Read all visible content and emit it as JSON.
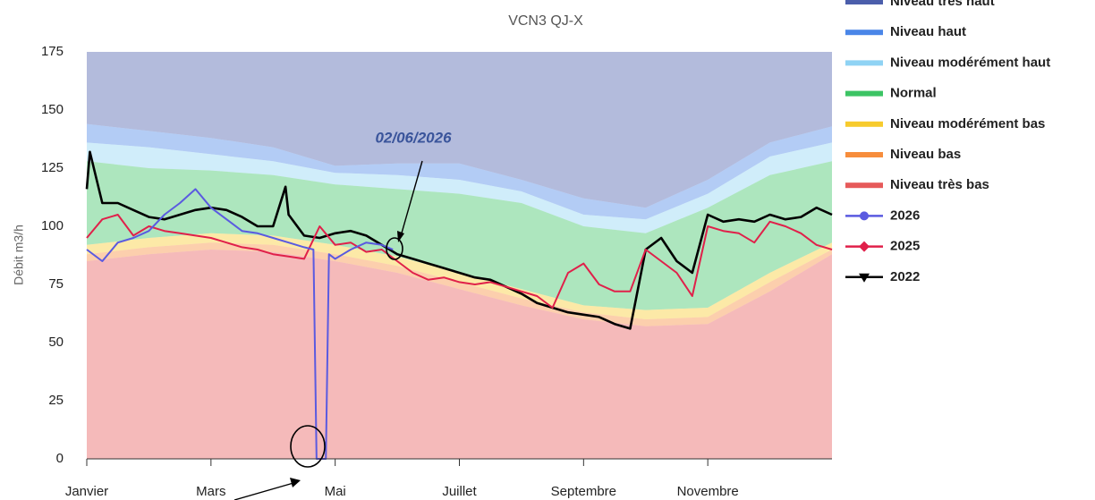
{
  "chart_data": {
    "type": "line",
    "subtitle": "VCN3 QJ-X",
    "y_label": "Débit   m3/h",
    "annotations": [
      "02/06/2026"
    ],
    "xlim": [
      0,
      12
    ],
    "ylim": [
      0,
      175
    ],
    "yticks": [
      0,
      25,
      50,
      75,
      100,
      125,
      150,
      175
    ],
    "xticks": [
      {
        "value": 0,
        "label": "Janvier"
      },
      {
        "value": 2,
        "label": "Mars"
      },
      {
        "value": 4,
        "label": "Mai"
      },
      {
        "value": 6,
        "label": "Juillet"
      },
      {
        "value": 8,
        "label": "Septembre"
      },
      {
        "value": 10,
        "label": "Novembre"
      }
    ],
    "grid": false,
    "legend": "right",
    "series": [
      {
        "name": "Niveau très haut",
        "type": "area",
        "color": "#4b5eab",
        "x": [
          0,
          1,
          2,
          3,
          4,
          5,
          6,
          7,
          8,
          9,
          10,
          11,
          12
        ],
        "values": [
          175,
          175,
          175,
          175,
          175,
          175,
          175,
          175,
          175,
          175,
          175,
          175,
          175
        ]
      },
      {
        "name": "Niveau haut",
        "type": "area",
        "color": "#4a86e8",
        "x": [
          0,
          1,
          2,
          3,
          4,
          5,
          6,
          7,
          8,
          9,
          10,
          11,
          12
        ],
        "values": [
          144,
          141,
          138,
          134,
          126,
          127,
          127,
          120,
          112,
          108,
          120,
          136,
          143
        ]
      },
      {
        "name": "Niveau modérément haut",
        "type": "area",
        "color": "#8fd3f4",
        "x": [
          0,
          1,
          2,
          3,
          4,
          5,
          6,
          7,
          8,
          9,
          10,
          11,
          12
        ],
        "values": [
          136,
          134,
          131,
          128,
          123,
          122,
          120,
          115,
          105,
          103,
          114,
          130,
          136
        ]
      },
      {
        "name": "Normal",
        "type": "area",
        "color": "#3cc464",
        "x": [
          0,
          1,
          2,
          3,
          4,
          5,
          6,
          7,
          8,
          9,
          10,
          11,
          12
        ],
        "values": [
          128,
          125,
          124,
          122,
          118,
          116,
          114,
          110,
          100,
          97,
          108,
          122,
          128
        ]
      },
      {
        "name": "Niveau modérément bas",
        "type": "area",
        "color": "#f7cb2d",
        "x": [
          0,
          1,
          2,
          3,
          4,
          5,
          6,
          7,
          8,
          9,
          10,
          11,
          12
        ],
        "values": [
          92,
          95,
          97,
          96,
          92,
          87,
          80,
          73,
          66,
          64,
          65,
          80,
          93
        ]
      },
      {
        "name": "Niveau bas",
        "type": "area",
        "color": "#f78d3c",
        "x": [
          0,
          1,
          2,
          3,
          4,
          5,
          6,
          7,
          8,
          9,
          10,
          11,
          12
        ],
        "values": [
          88,
          91,
          93,
          92,
          88,
          83,
          76,
          69,
          63,
          60,
          61,
          76,
          90
        ]
      },
      {
        "name": "Niveau très bas",
        "type": "area",
        "color": "#e65a5a",
        "x": [
          0,
          1,
          2,
          3,
          4,
          5,
          6,
          7,
          8,
          9,
          10,
          11,
          12
        ],
        "values": [
          85,
          88,
          90,
          89,
          85,
          80,
          73,
          66,
          60,
          57,
          58,
          72,
          88
        ]
      },
      {
        "name": "2026",
        "type": "line",
        "marker": "circle",
        "color": "#5a5ae0",
        "x": [
          0,
          0.25,
          0.5,
          0.75,
          1,
          1.25,
          1.5,
          1.75,
          2,
          2.25,
          2.5,
          2.75,
          3,
          3.25,
          3.5,
          3.65,
          3.7,
          3.85,
          3.9,
          4,
          4.25,
          4.5,
          4.75,
          4.93
        ],
        "values": [
          90,
          85,
          93,
          95,
          98,
          105,
          110,
          116,
          108,
          103,
          98,
          97,
          95,
          93,
          91,
          90,
          0,
          0,
          88,
          86,
          90,
          93,
          92,
          90
        ]
      },
      {
        "name": "2025",
        "type": "line",
        "marker": "diamond",
        "color": "#e0204a",
        "x": [
          0,
          0.25,
          0.5,
          0.75,
          1,
          1.25,
          1.5,
          1.75,
          2,
          2.25,
          2.5,
          2.75,
          3,
          3.25,
          3.5,
          3.75,
          4,
          4.25,
          4.5,
          4.75,
          5,
          5.25,
          5.5,
          5.75,
          6,
          6.25,
          6.5,
          6.75,
          7,
          7.25,
          7.5,
          7.75,
          8,
          8.25,
          8.5,
          8.75,
          9,
          9.25,
          9.5,
          9.75,
          10,
          10.25,
          10.5,
          10.75,
          11,
          11.25,
          11.5,
          11.75,
          12
        ],
        "values": [
          95,
          103,
          105,
          96,
          100,
          98,
          97,
          96,
          95,
          93,
          91,
          90,
          88,
          87,
          86,
          100,
          92,
          93,
          89,
          90,
          85,
          80,
          77,
          78,
          76,
          75,
          76,
          74,
          72,
          70,
          65,
          80,
          84,
          75,
          72,
          72,
          90,
          85,
          80,
          70,
          100,
          98,
          97,
          93,
          102,
          100,
          97,
          92,
          90
        ]
      },
      {
        "name": "2022",
        "type": "line",
        "marker": "triangle",
        "color": "#000000",
        "x": [
          0,
          0.05,
          0.25,
          0.5,
          0.75,
          1,
          1.25,
          1.5,
          1.75,
          2,
          2.25,
          2.5,
          2.75,
          3,
          3.2,
          3.25,
          3.5,
          3.75,
          4,
          4.25,
          4.5,
          4.75,
          5,
          5.25,
          5.5,
          5.75,
          6,
          6.25,
          6.5,
          6.75,
          7,
          7.25,
          7.5,
          7.75,
          8,
          8.25,
          8.5,
          8.75,
          9,
          9.25,
          9.5,
          9.75,
          10,
          10.25,
          10.5,
          10.75,
          11,
          11.25,
          11.5,
          11.75,
          12
        ],
        "values": [
          116,
          132,
          110,
          110,
          107,
          104,
          103,
          105,
          107,
          108,
          107,
          104,
          100,
          100,
          117,
          105,
          96,
          95,
          97,
          98,
          96,
          92,
          88,
          86,
          84,
          82,
          80,
          78,
          77,
          74,
          71,
          67,
          65,
          63,
          62,
          61,
          58,
          56,
          90,
          95,
          85,
          80,
          105,
          102,
          103,
          102,
          105,
          103,
          104,
          108,
          105
        ]
      }
    ]
  }
}
